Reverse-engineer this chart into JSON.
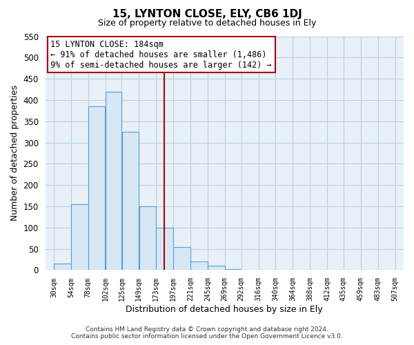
{
  "title": "15, LYNTON CLOSE, ELY, CB6 1DJ",
  "subtitle": "Size of property relative to detached houses in Ely",
  "xlabel": "Distribution of detached houses by size in Ely",
  "ylabel": "Number of detached properties",
  "bar_left_edges": [
    30,
    54,
    78,
    102,
    125,
    149,
    173,
    197,
    221,
    245,
    269,
    292,
    316,
    340,
    364,
    388,
    412,
    435,
    459,
    483
  ],
  "bar_widths": [
    24,
    24,
    24,
    23,
    24,
    24,
    24,
    24,
    24,
    24,
    23,
    24,
    24,
    24,
    24,
    24,
    23,
    24,
    24,
    24
  ],
  "bar_heights": [
    15,
    155,
    385,
    420,
    325,
    150,
    100,
    55,
    20,
    10,
    3,
    1,
    1,
    0,
    0,
    1,
    0,
    0,
    0,
    1
  ],
  "bar_color": "#d6e8f5",
  "bar_edgecolor": "#5b9bd5",
  "tick_labels": [
    "30sqm",
    "54sqm",
    "78sqm",
    "102sqm",
    "125sqm",
    "149sqm",
    "173sqm",
    "197sqm",
    "221sqm",
    "245sqm",
    "269sqm",
    "292sqm",
    "316sqm",
    "340sqm",
    "364sqm",
    "388sqm",
    "412sqm",
    "435sqm",
    "459sqm",
    "483sqm",
    "507sqm"
  ],
  "tick_positions": [
    30,
    54,
    78,
    102,
    125,
    149,
    173,
    197,
    221,
    245,
    269,
    292,
    316,
    340,
    364,
    388,
    412,
    435,
    459,
    483,
    507
  ],
  "ylim": [
    0,
    550
  ],
  "xlim": [
    18,
    519
  ],
  "vline_x": 184,
  "vline_color": "#aa0000",
  "annotation_title": "15 LYNTON CLOSE: 184sqm",
  "annotation_line1": "← 91% of detached houses are smaller (1,486)",
  "annotation_line2": "9% of semi-detached houses are larger (142) →",
  "footer1": "Contains HM Land Registry data © Crown copyright and database right 2024.",
  "footer2": "Contains public sector information licensed under the Open Government Licence v3.0.",
  "yticks": [
    0,
    50,
    100,
    150,
    200,
    250,
    300,
    350,
    400,
    450,
    500,
    550
  ],
  "background_color": "#ffffff",
  "plot_bg_color": "#e8f0f8",
  "grid_color": "#b8cfe0"
}
